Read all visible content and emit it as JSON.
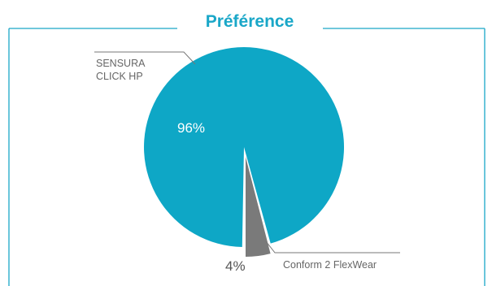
{
  "title": "Préférence",
  "colors": {
    "frame": "#1aa7c8",
    "slice_main": "#0ea7c6",
    "slice_minor": "#7a7a7a",
    "leader": "#777777"
  },
  "chart_data": {
    "type": "pie",
    "title": "Préférence",
    "categories": [
      "SENSURA CLICK HP",
      "Conform 2 FlexWear"
    ],
    "values": [
      96,
      4
    ],
    "value_labels": [
      "96%",
      "4%"
    ],
    "exploded": "Conform 2 FlexWear",
    "legend": "none"
  },
  "slices": [
    {
      "name": "SENSURA CLICK HP",
      "label_lines": [
        "SENSURA",
        "CLICK HP"
      ],
      "value": 96,
      "value_label": "96%"
    },
    {
      "name": "Conform 2 FlexWear",
      "label_lines": [
        "Conform 2 FlexWear"
      ],
      "value": 4,
      "value_label": "4%"
    }
  ]
}
